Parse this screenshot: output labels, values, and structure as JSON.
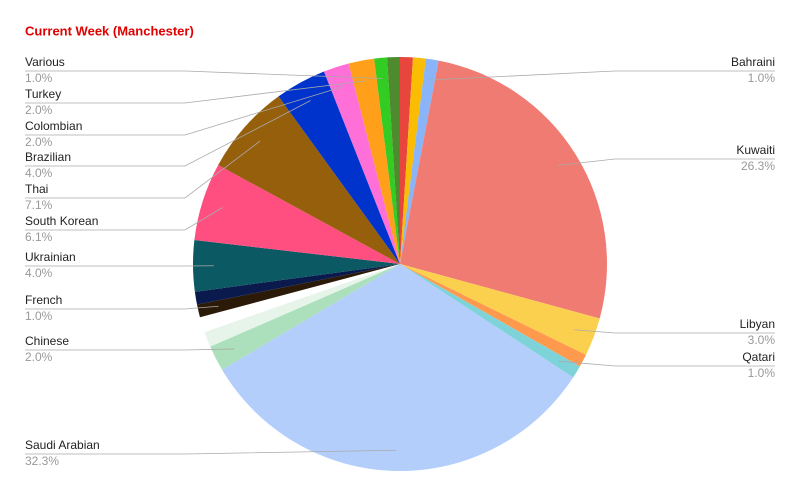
{
  "chart_data": {
    "type": "pie",
    "title": "Current Week (Manchester)",
    "categories": [
      null,
      null,
      "Bahraini",
      "Kuwaiti",
      "Libyan",
      null,
      "Qatari",
      "Saudi Arabian",
      "Chinese",
      null,
      null,
      "French",
      null,
      "Ukrainian",
      "South Korean",
      "Thai",
      "Brazilian",
      "Colombian",
      "Turkey",
      "Various",
      null
    ],
    "values": [
      1.0,
      1.0,
      1.0,
      26.3,
      3.0,
      1.0,
      1.0,
      32.3,
      2.0,
      1.2,
      1.2,
      1.0,
      1.0,
      4.0,
      6.1,
      7.1,
      4.0,
      2.0,
      2.0,
      1.0,
      1.0
    ],
    "value_labels": [
      null,
      null,
      "1.0%",
      "26.3%",
      "3.0%",
      null,
      "1.0%",
      "32.3%",
      "2.0%",
      null,
      null,
      "1.0%",
      null,
      "4.0%",
      "6.1%",
      "7.1%",
      "4.0%",
      "2.0%",
      "2.0%",
      "1.0%",
      null
    ],
    "colors": [
      "#e8453c",
      "#fbbc04",
      "#8ab4f8",
      "#f07b72",
      "#fcd04f",
      "#ff994d",
      "#7ed3d8",
      "#b3cefb",
      "#acdfbc",
      "#e6f4ea",
      "#ffffff",
      "#2b1a08",
      "#0b1a4d",
      "#0b5963",
      "#ff4f80",
      "#965f0b",
      "#0033cc",
      "#ff6fd8",
      "#ff9f1a",
      "#33cc22",
      "#4e8a2e"
    ]
  }
}
